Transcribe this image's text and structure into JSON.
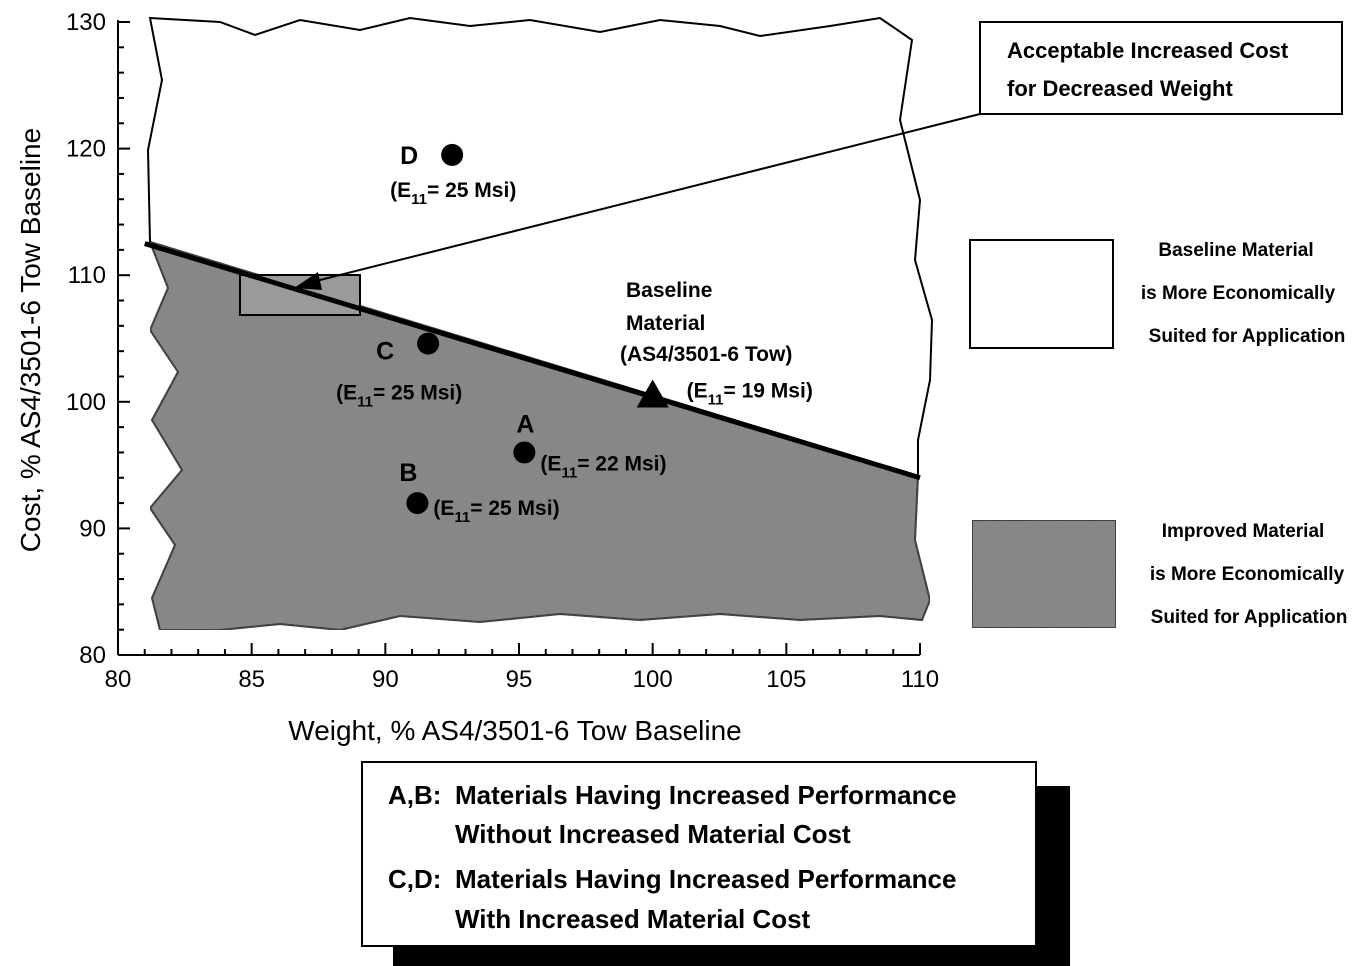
{
  "chart_data": {
    "type": "scatter",
    "title": "",
    "xlabel": "Weight, % AS4/3501-6 Tow Baseline",
    "ylabel": "Cost, % AS4/3501-6 Tow Baseline",
    "xlim": [
      80,
      110
    ],
    "ylim": [
      80,
      130
    ],
    "xticks": [
      80,
      85,
      90,
      95,
      100,
      105,
      110
    ],
    "yticks": [
      80,
      90,
      100,
      110,
      120,
      130
    ],
    "grid": false,
    "boundary_line": {
      "x": [
        81,
        110
      ],
      "y": [
        112.5,
        94
      ]
    },
    "points": [
      {
        "id": "D",
        "label": "D",
        "x": 92.5,
        "y": 119.5,
        "marker": "circle",
        "annotation": "(E",
        "sub": "11",
        "value": "= 25 Msi)"
      },
      {
        "id": "C",
        "label": "C",
        "x": 91.6,
        "y": 104.6,
        "marker": "circle",
        "annotation": "(E",
        "sub": "11",
        "value": "= 25 Msi)"
      },
      {
        "id": "A",
        "label": "A",
        "x": 95.2,
        "y": 96.0,
        "marker": "circle",
        "annotation": "(E",
        "sub": "11",
        "value": "= 22 Msi)"
      },
      {
        "id": "B",
        "label": "B",
        "x": 91.2,
        "y": 92.0,
        "marker": "circle",
        "annotation": "(E",
        "sub": "11",
        "value": "= 25 Msi)"
      },
      {
        "id": "baseline",
        "label": "",
        "x": 100,
        "y": 100.5,
        "marker": "triangle",
        "annotation": "(E",
        "sub": "11",
        "value": "= 19 Msi)"
      }
    ],
    "baseline_label": [
      "Baseline",
      "Material",
      "(AS4/3501-6 Tow)"
    ],
    "callout": [
      "Acceptable Increased Cost",
      "for Decreased Weight"
    ],
    "legend": [
      {
        "fill": "white",
        "lines": [
          "Baseline Material",
          "is More Economically",
          "Suited for Application"
        ]
      },
      {
        "fill": "shaded",
        "lines": [
          "Improved Material",
          "is More Economically",
          "Suited for Application"
        ]
      }
    ],
    "notes": [
      {
        "lead": "A,B:",
        "lines": [
          "Materials Having Increased Performance",
          "Without Increased Material Cost"
        ]
      },
      {
        "lead": "C,D:",
        "lines": [
          "Materials Having Increased Performance",
          "With Increased Material Cost"
        ]
      }
    ],
    "colors": {
      "shade": "#8c8c8c",
      "ink": "#000000",
      "paper": "#ffffff"
    }
  }
}
